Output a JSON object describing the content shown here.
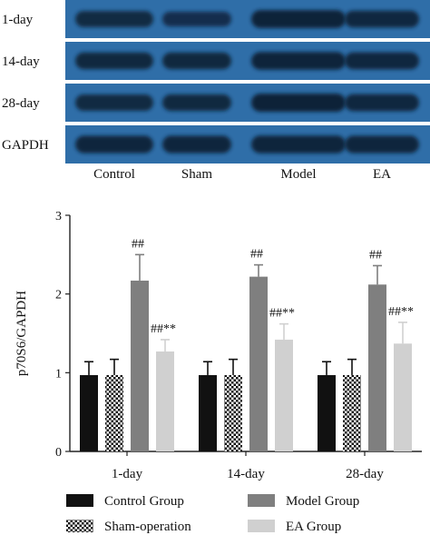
{
  "blot": {
    "rows": [
      "1-day",
      "14-day",
      "28-day",
      "GAPDH"
    ],
    "lanes": [
      "Control",
      "Sham",
      "Model",
      "EA"
    ],
    "panel_color": "#2f6ea8",
    "band_color": "#0d2238",
    "band_intensity": [
      [
        0.78,
        0.62,
        0.98,
        0.86
      ],
      [
        0.85,
        0.84,
        0.96,
        0.88
      ],
      [
        0.8,
        0.82,
        1.0,
        0.88
      ],
      [
        0.92,
        0.92,
        0.94,
        0.92
      ]
    ]
  },
  "chart_data": {
    "type": "bar",
    "categories": [
      "1-day",
      "14-day",
      "28-day"
    ],
    "ylabel": "p70S6/GAPDH",
    "xlabel": "",
    "ylim": [
      0,
      3
    ],
    "yticks": [
      "0",
      "1",
      "2",
      "3"
    ],
    "series": [
      {
        "name": "Control Group",
        "values": [
          0.97,
          0.97,
          0.97
        ],
        "errors": [
          0.17,
          0.17,
          0.17
        ],
        "color": "#111111",
        "pattern": "solid"
      },
      {
        "name": "Sham-operation",
        "values": [
          0.97,
          0.97,
          0.97
        ],
        "errors": [
          0.2,
          0.2,
          0.2
        ],
        "color": "#111111",
        "pattern": "checker"
      },
      {
        "name": "Model Group",
        "values": [
          2.17,
          2.22,
          2.12
        ],
        "errors": [
          0.33,
          0.15,
          0.24
        ],
        "color": "#7f7f7f",
        "pattern": "solid"
      },
      {
        "name": "EA Group",
        "values": [
          1.27,
          1.42,
          1.37
        ],
        "errors": [
          0.15,
          0.2,
          0.27
        ],
        "color": "#d0d0d0",
        "pattern": "solid"
      }
    ],
    "annotations": [
      {
        "category": "1-day",
        "series": "Model Group",
        "text": "##"
      },
      {
        "category": "1-day",
        "series": "EA Group",
        "text": "##**"
      },
      {
        "category": "14-day",
        "series": "Model Group",
        "text": "##"
      },
      {
        "category": "14-day",
        "series": "EA Group",
        "text": "##**"
      },
      {
        "category": "28-day",
        "series": "Model Group",
        "text": "##"
      },
      {
        "category": "28-day",
        "series": "EA Group",
        "text": "##**"
      }
    ],
    "legend_position": "bottom"
  }
}
